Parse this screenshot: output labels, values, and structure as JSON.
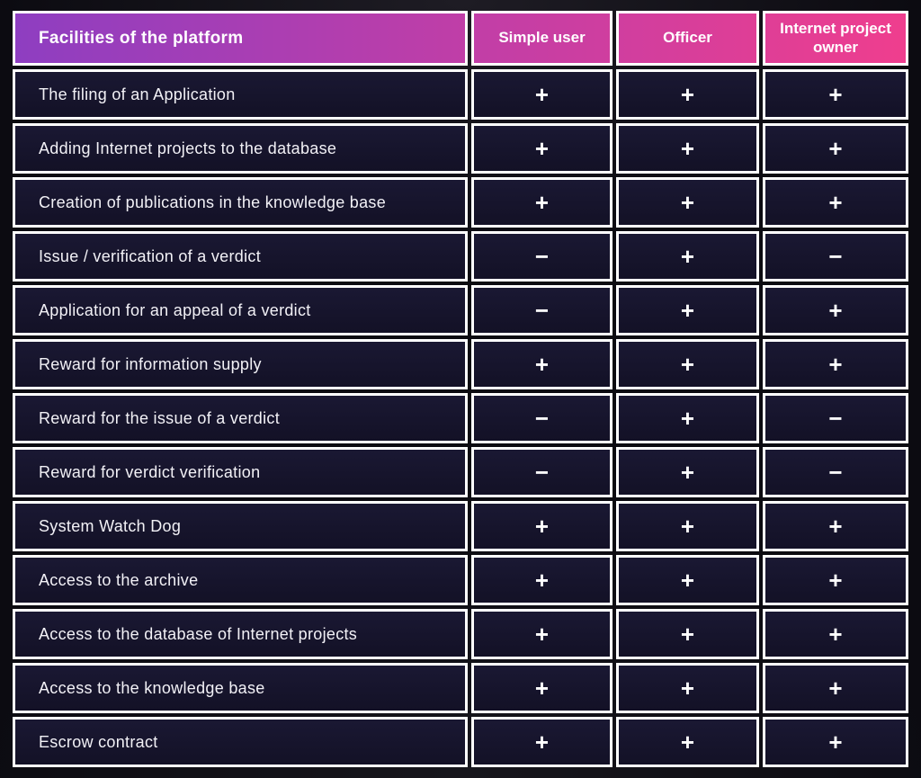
{
  "table": {
    "header": {
      "title": "Facilities of the platform",
      "columns": [
        "Simple user",
        "Officer",
        "Internet project owner"
      ]
    },
    "rows": [
      {
        "label": "The filing of an Application",
        "values": [
          "+",
          "+",
          "+"
        ]
      },
      {
        "label": "Adding Internet projects to the database",
        "values": [
          "+",
          "+",
          "+"
        ]
      },
      {
        "label": "Creation of publications in the knowledge base",
        "values": [
          "+",
          "+",
          "+"
        ]
      },
      {
        "label": "Issue / verification of a verdict",
        "values": [
          "−",
          "+",
          "−"
        ]
      },
      {
        "label": "Application for an appeal of a verdict",
        "values": [
          "−",
          "+",
          "+"
        ]
      },
      {
        "label": "Reward for information supply",
        "values": [
          "+",
          "+",
          "+"
        ]
      },
      {
        "label": "Reward for the issue of a verdict",
        "values": [
          "−",
          "+",
          "−"
        ]
      },
      {
        "label": "Reward for verdict verification",
        "values": [
          "−",
          "+",
          "−"
        ]
      },
      {
        "label": "System Watch Dog",
        "values": [
          "+",
          "+",
          "+"
        ]
      },
      {
        "label": "Access to the archive",
        "values": [
          "+",
          "+",
          "+"
        ]
      },
      {
        "label": "Access to the database of Internet projects",
        "values": [
          "+",
          "+",
          "+"
        ]
      },
      {
        "label": "Access to the knowledge base",
        "values": [
          "+",
          "+",
          "+"
        ]
      },
      {
        "label": "Escrow contract",
        "values": [
          "+",
          "+",
          "+"
        ]
      }
    ]
  },
  "colors": {
    "header_gradient_start": "#8E3EC1",
    "header_gradient_end": "#EF3E8E",
    "cell_background": "#16142B",
    "border": "#FFFFFF",
    "page_background": "#0C0B11",
    "text": "#FFFFFF"
  }
}
